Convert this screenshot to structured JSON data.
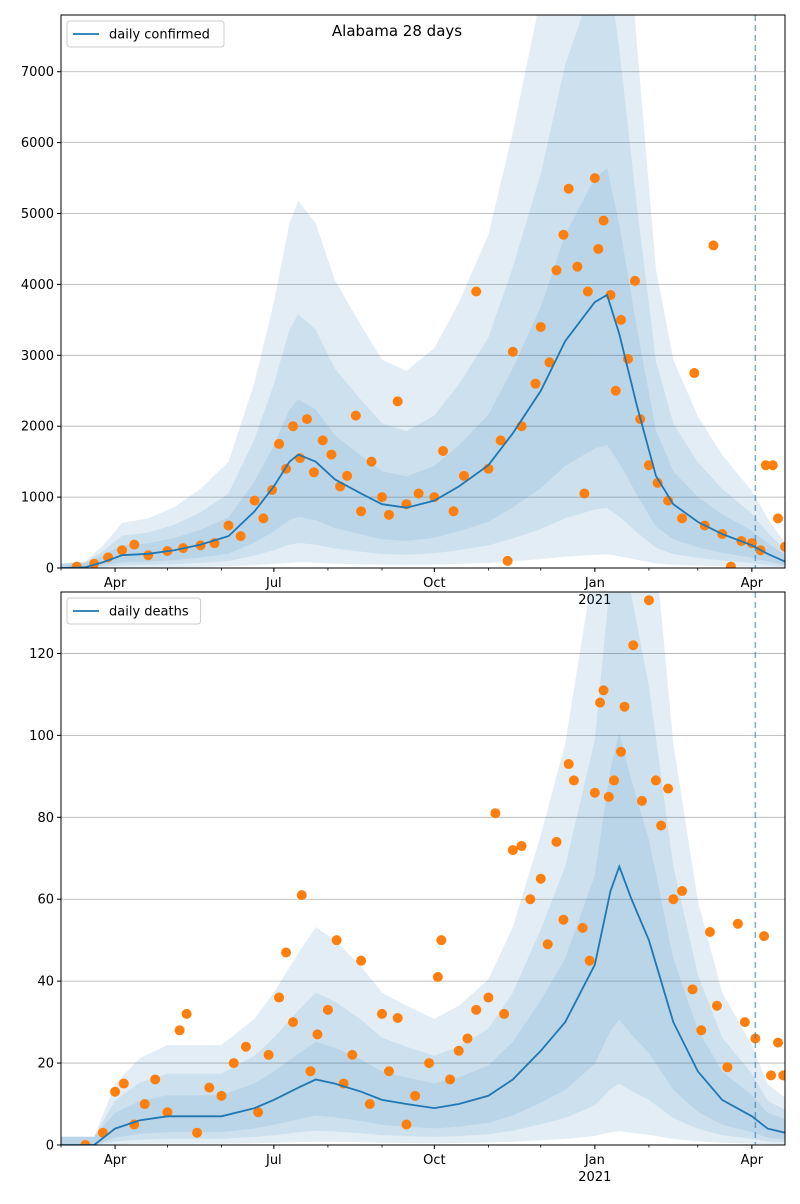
{
  "figure": {
    "title": "Alabama 28 days"
  },
  "colors": {
    "model": "#1f77b4",
    "observed": "#ff7f0e",
    "band": "#1f77b4",
    "grid": "#b0b0b0",
    "marker_line": "#1f77b4"
  },
  "chart_data": [
    {
      "type": "line",
      "title": "Alabama 28 days",
      "legend": {
        "placement": "top-left",
        "entries": [
          "daily confirmed"
        ]
      },
      "xlabel": "",
      "ylabel": "",
      "xlim": [
        "2020-03-01",
        "2021-04-20"
      ],
      "ylim": [
        0,
        7800
      ],
      "grid": {
        "y": true,
        "x": false
      },
      "x_ticks": [
        {
          "date": "2020-04-01",
          "label": "Apr",
          "sublabel": ""
        },
        {
          "date": "2020-07-01",
          "label": "Jul",
          "sublabel": ""
        },
        {
          "date": "2020-10-01",
          "label": "Oct",
          "sublabel": ""
        },
        {
          "date": "2021-01-01",
          "label": "Jan",
          "sublabel": "2021"
        },
        {
          "date": "2021-04-01",
          "label": "Apr",
          "sublabel": ""
        }
      ],
      "y_ticks": [
        0,
        1000,
        2000,
        3000,
        4000,
        5000,
        6000,
        7000
      ],
      "forecast_start": "2021-04-03",
      "series": [
        {
          "name": "daily confirmed",
          "kind": "line",
          "points": [
            [
              "2020-03-01",
              0
            ],
            [
              "2020-03-15",
              10
            ],
            [
              "2020-03-25",
              80
            ],
            [
              "2020-04-05",
              180
            ],
            [
              "2020-04-20",
              200
            ],
            [
              "2020-05-05",
              250
            ],
            [
              "2020-05-20",
              330
            ],
            [
              "2020-06-05",
              450
            ],
            [
              "2020-06-20",
              800
            ],
            [
              "2020-07-01",
              1150
            ],
            [
              "2020-07-10",
              1500
            ],
            [
              "2020-07-15",
              1600
            ],
            [
              "2020-07-25",
              1500
            ],
            [
              "2020-08-05",
              1250
            ],
            [
              "2020-08-20",
              1050
            ],
            [
              "2020-09-01",
              900
            ],
            [
              "2020-09-15",
              850
            ],
            [
              "2020-10-01",
              950
            ],
            [
              "2020-10-15",
              1150
            ],
            [
              "2020-11-01",
              1450
            ],
            [
              "2020-11-15",
              1900
            ],
            [
              "2020-12-01",
              2500
            ],
            [
              "2020-12-15",
              3200
            ],
            [
              "2021-01-01",
              3750
            ],
            [
              "2021-01-08",
              3850
            ],
            [
              "2021-01-15",
              3300
            ],
            [
              "2021-01-25",
              2300
            ],
            [
              "2021-02-05",
              1300
            ],
            [
              "2021-02-15",
              900
            ],
            [
              "2021-03-01",
              650
            ],
            [
              "2021-03-15",
              480
            ],
            [
              "2021-04-01",
              320
            ],
            [
              "2021-04-10",
              200
            ],
            [
              "2021-04-20",
              90
            ]
          ]
        },
        {
          "name": "",
          "kind": "scatter",
          "points": [
            [
              "2020-03-10",
              20
            ],
            [
              "2020-03-20",
              60
            ],
            [
              "2020-03-28",
              150
            ],
            [
              "2020-04-05",
              250
            ],
            [
              "2020-04-12",
              330
            ],
            [
              "2020-04-20",
              180
            ],
            [
              "2020-05-01",
              240
            ],
            [
              "2020-05-10",
              280
            ],
            [
              "2020-05-20",
              320
            ],
            [
              "2020-05-28",
              350
            ],
            [
              "2020-06-05",
              600
            ],
            [
              "2020-06-12",
              450
            ],
            [
              "2020-06-20",
              950
            ],
            [
              "2020-06-25",
              700
            ],
            [
              "2020-06-30",
              1100
            ],
            [
              "2020-07-04",
              1750
            ],
            [
              "2020-07-08",
              1400
            ],
            [
              "2020-07-12",
              2000
            ],
            [
              "2020-07-16",
              1550
            ],
            [
              "2020-07-20",
              2100
            ],
            [
              "2020-07-24",
              1350
            ],
            [
              "2020-07-29",
              1800
            ],
            [
              "2020-08-03",
              1600
            ],
            [
              "2020-08-08",
              1150
            ],
            [
              "2020-08-12",
              1300
            ],
            [
              "2020-08-17",
              2150
            ],
            [
              "2020-08-20",
              800
            ],
            [
              "2020-08-26",
              1500
            ],
            [
              "2020-09-01",
              1000
            ],
            [
              "2020-09-05",
              750
            ],
            [
              "2020-09-10",
              2350
            ],
            [
              "2020-09-15",
              900
            ],
            [
              "2020-09-22",
              1050
            ],
            [
              "2020-10-01",
              1000
            ],
            [
              "2020-10-06",
              1650
            ],
            [
              "2020-10-12",
              800
            ],
            [
              "2020-10-18",
              1300
            ],
            [
              "2020-10-25",
              3900
            ],
            [
              "2020-11-01",
              1400
            ],
            [
              "2020-11-08",
              1800
            ],
            [
              "2020-11-12",
              100
            ],
            [
              "2020-11-15",
              3050
            ],
            [
              "2020-11-20",
              2000
            ],
            [
              "2020-11-28",
              2600
            ],
            [
              "2020-12-01",
              3400
            ],
            [
              "2020-12-06",
              2900
            ],
            [
              "2020-12-10",
              4200
            ],
            [
              "2020-12-14",
              4700
            ],
            [
              "2020-12-17",
              5350
            ],
            [
              "2020-12-22",
              4250
            ],
            [
              "2020-12-26",
              1050
            ],
            [
              "2020-12-28",
              3900
            ],
            [
              "2021-01-01",
              5500
            ],
            [
              "2021-01-03",
              4500
            ],
            [
              "2021-01-06",
              4900
            ],
            [
              "2021-01-10",
              3850
            ],
            [
              "2021-01-13",
              2500
            ],
            [
              "2021-01-16",
              3500
            ],
            [
              "2021-01-20",
              2950
            ],
            [
              "2021-01-24",
              4050
            ],
            [
              "2021-01-27",
              2100
            ],
            [
              "2021-02-01",
              1450
            ],
            [
              "2021-02-06",
              1200
            ],
            [
              "2021-02-12",
              950
            ],
            [
              "2021-02-20",
              700
            ],
            [
              "2021-02-27",
              2750
            ],
            [
              "2021-03-05",
              600
            ],
            [
              "2021-03-10",
              4550
            ],
            [
              "2021-03-15",
              480
            ],
            [
              "2021-03-20",
              20
            ],
            [
              "2021-03-26",
              380
            ],
            [
              "2021-04-01",
              350
            ],
            [
              "2021-04-06",
              250
            ],
            [
              "2021-04-09",
              1450
            ],
            [
              "2021-04-13",
              1450
            ],
            [
              "2021-04-16",
              700
            ],
            [
              "2021-04-20",
              300
            ]
          ]
        }
      ]
    },
    {
      "type": "line",
      "title": "",
      "legend": {
        "placement": "top-left",
        "entries": [
          "daily deaths"
        ]
      },
      "xlabel": "",
      "ylabel": "",
      "xlim": [
        "2020-03-01",
        "2021-04-20"
      ],
      "ylim": [
        0,
        135
      ],
      "grid": {
        "y": true,
        "x": false
      },
      "x_ticks": [
        {
          "date": "2020-04-01",
          "label": "Apr",
          "sublabel": ""
        },
        {
          "date": "2020-07-01",
          "label": "Jul",
          "sublabel": ""
        },
        {
          "date": "2020-10-01",
          "label": "Oct",
          "sublabel": ""
        },
        {
          "date": "2021-01-01",
          "label": "Jan",
          "sublabel": "2021"
        },
        {
          "date": "2021-04-01",
          "label": "Apr",
          "sublabel": ""
        }
      ],
      "y_ticks": [
        0,
        20,
        40,
        60,
        80,
        100,
        120
      ],
      "forecast_start": "2021-04-03",
      "series": [
        {
          "name": "daily deaths",
          "kind": "line",
          "points": [
            [
              "2020-03-01",
              0
            ],
            [
              "2020-03-20",
              0
            ],
            [
              "2020-04-01",
              4
            ],
            [
              "2020-04-15",
              6
            ],
            [
              "2020-05-01",
              7
            ],
            [
              "2020-05-15",
              7
            ],
            [
              "2020-06-01",
              7
            ],
            [
              "2020-06-20",
              9
            ],
            [
              "2020-07-01",
              11
            ],
            [
              "2020-07-15",
              14
            ],
            [
              "2020-07-25",
              16
            ],
            [
              "2020-08-05",
              15
            ],
            [
              "2020-08-20",
              13
            ],
            [
              "2020-09-01",
              11
            ],
            [
              "2020-09-15",
              10
            ],
            [
              "2020-10-01",
              9
            ],
            [
              "2020-10-15",
              10
            ],
            [
              "2020-11-01",
              12
            ],
            [
              "2020-11-15",
              16
            ],
            [
              "2020-12-01",
              23
            ],
            [
              "2020-12-15",
              30
            ],
            [
              "2021-01-01",
              44
            ],
            [
              "2021-01-10",
              62
            ],
            [
              "2021-01-15",
              68
            ],
            [
              "2021-01-22",
              60
            ],
            [
              "2021-02-01",
              50
            ],
            [
              "2021-02-15",
              30
            ],
            [
              "2021-03-01",
              18
            ],
            [
              "2021-03-15",
              11
            ],
            [
              "2021-04-01",
              7
            ],
            [
              "2021-04-10",
              4
            ],
            [
              "2021-04-20",
              3
            ]
          ]
        },
        {
          "name": "",
          "kind": "scatter",
          "points": [
            [
              "2020-03-15",
              0
            ],
            [
              "2020-03-25",
              3
            ],
            [
              "2020-04-01",
              13
            ],
            [
              "2020-04-06",
              15
            ],
            [
              "2020-04-12",
              5
            ],
            [
              "2020-04-18",
              10
            ],
            [
              "2020-04-24",
              16
            ],
            [
              "2020-05-01",
              8
            ],
            [
              "2020-05-08",
              28
            ],
            [
              "2020-05-12",
              32
            ],
            [
              "2020-05-18",
              3
            ],
            [
              "2020-05-25",
              14
            ],
            [
              "2020-06-01",
              12
            ],
            [
              "2020-06-08",
              20
            ],
            [
              "2020-06-15",
              24
            ],
            [
              "2020-06-22",
              8
            ],
            [
              "2020-06-28",
              22
            ],
            [
              "2020-07-04",
              36
            ],
            [
              "2020-07-08",
              47
            ],
            [
              "2020-07-12",
              30
            ],
            [
              "2020-07-17",
              61
            ],
            [
              "2020-07-22",
              18
            ],
            [
              "2020-07-26",
              27
            ],
            [
              "2020-08-01",
              33
            ],
            [
              "2020-08-06",
              50
            ],
            [
              "2020-08-10",
              15
            ],
            [
              "2020-08-15",
              22
            ],
            [
              "2020-08-20",
              45
            ],
            [
              "2020-08-25",
              10
            ],
            [
              "2020-09-01",
              32
            ],
            [
              "2020-09-05",
              18
            ],
            [
              "2020-09-10",
              31
            ],
            [
              "2020-09-15",
              5
            ],
            [
              "2020-09-20",
              12
            ],
            [
              "2020-09-28",
              20
            ],
            [
              "2020-10-03",
              41
            ],
            [
              "2020-10-05",
              50
            ],
            [
              "2020-10-10",
              16
            ],
            [
              "2020-10-15",
              23
            ],
            [
              "2020-10-20",
              26
            ],
            [
              "2020-10-25",
              33
            ],
            [
              "2020-11-01",
              36
            ],
            [
              "2020-11-05",
              81
            ],
            [
              "2020-11-10",
              32
            ],
            [
              "2020-11-15",
              72
            ],
            [
              "2020-11-20",
              73
            ],
            [
              "2020-11-25",
              60
            ],
            [
              "2020-12-01",
              65
            ],
            [
              "2020-12-05",
              49
            ],
            [
              "2020-12-10",
              74
            ],
            [
              "2020-12-14",
              55
            ],
            [
              "2020-12-17",
              93
            ],
            [
              "2020-12-20",
              89
            ],
            [
              "2020-12-25",
              53
            ],
            [
              "2020-12-29",
              45
            ],
            [
              "2021-01-01",
              86
            ],
            [
              "2021-01-04",
              108
            ],
            [
              "2021-01-06",
              111
            ],
            [
              "2021-01-09",
              85
            ],
            [
              "2021-01-12",
              89
            ],
            [
              "2021-01-16",
              96
            ],
            [
              "2021-01-18",
              107
            ],
            [
              "2021-01-23",
              122
            ],
            [
              "2021-01-28",
              84
            ],
            [
              "2021-02-01",
              133
            ],
            [
              "2021-02-05",
              89
            ],
            [
              "2021-02-08",
              78
            ],
            [
              "2021-02-12",
              87
            ],
            [
              "2021-02-15",
              60
            ],
            [
              "2021-02-20",
              62
            ],
            [
              "2021-02-26",
              38
            ],
            [
              "2021-03-03",
              28
            ],
            [
              "2021-03-08",
              52
            ],
            [
              "2021-03-12",
              34
            ],
            [
              "2021-03-18",
              19
            ],
            [
              "2021-03-24",
              54
            ],
            [
              "2021-03-28",
              30
            ],
            [
              "2021-04-03",
              26
            ],
            [
              "2021-04-08",
              51
            ],
            [
              "2021-04-12",
              17
            ],
            [
              "2021-04-16",
              25
            ],
            [
              "2021-04-19",
              17
            ]
          ]
        }
      ]
    }
  ]
}
